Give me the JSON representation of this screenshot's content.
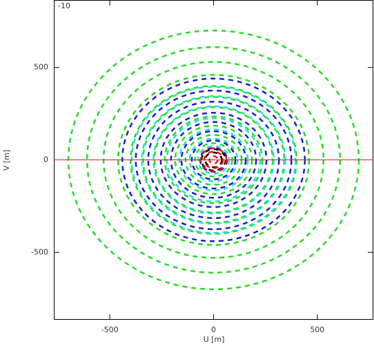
{
  "chart_data": {
    "type": "uv-coverage",
    "annotation": "-10",
    "x_label": "U [m]",
    "y_label": "V [m]",
    "xlim": [
      -770,
      770
    ],
    "ylim": [
      -865,
      865
    ],
    "xticks": [
      -500,
      0,
      500
    ],
    "yticks": [
      -500,
      0,
      500
    ],
    "series": [
      {
        "color": "#22dd22",
        "values": [
          700,
          610,
          530,
          460,
          400,
          340,
          285,
          235,
          185,
          135,
          90
        ]
      },
      {
        "color": "#1a1acc",
        "values": [
          440,
          375,
          315,
          255,
          205,
          155,
          105,
          65
        ]
      },
      {
        "color": "#22dddd",
        "values": [
          395,
          345,
          290,
          225,
          165,
          115,
          75
        ]
      },
      {
        "color": "#000000",
        "values": [
          40,
          58
        ]
      },
      {
        "color": "#ee1111",
        "values": [
          20,
          45,
          62
        ]
      }
    ]
  }
}
